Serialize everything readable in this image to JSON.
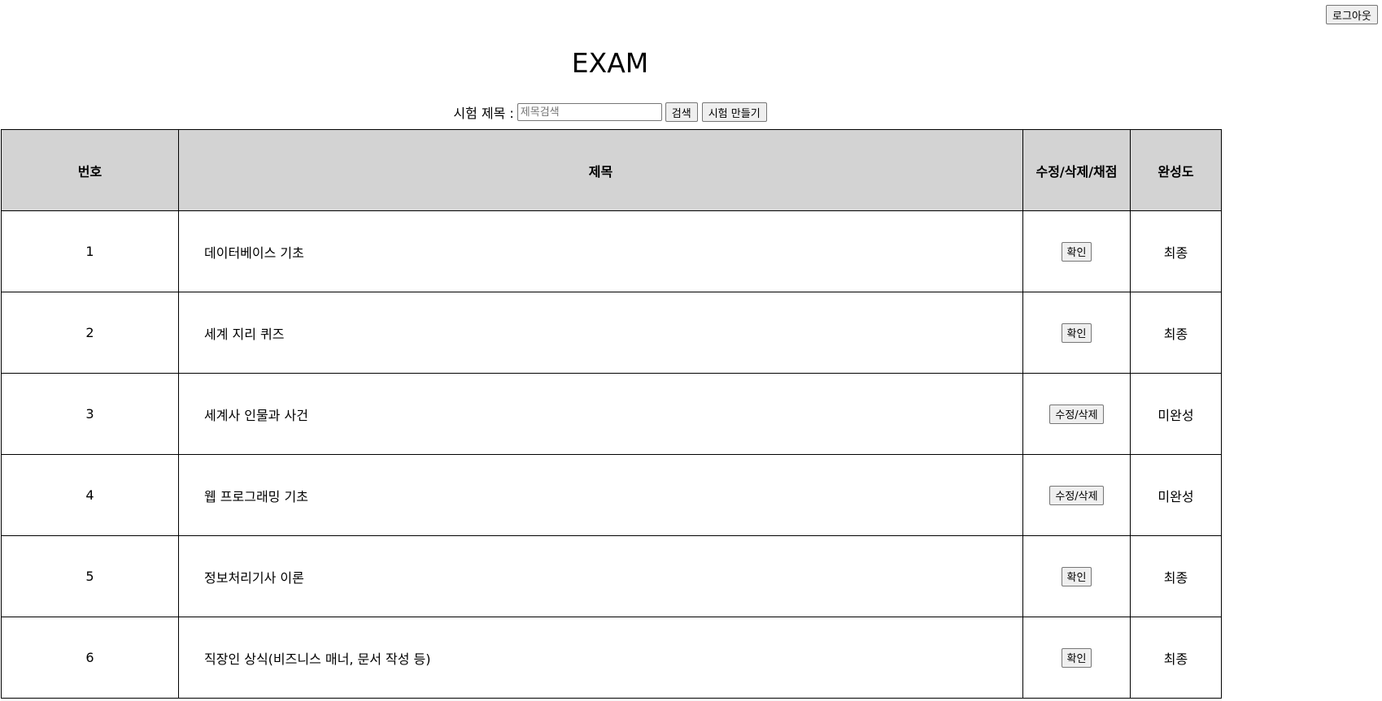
{
  "header": {
    "logout_label": "로그아웃",
    "title": "EXAM"
  },
  "search": {
    "label": "시험 제목 :",
    "placeholder": "제목검색",
    "value": "",
    "search_button": "검색",
    "create_button": "시험 만들기"
  },
  "table": {
    "columns": [
      "번호",
      "제목",
      "수정/삭제/채점",
      "완성도"
    ],
    "rows": [
      {
        "no": "1",
        "title": "데이터베이스 기초",
        "action": "확인",
        "status": "최종"
      },
      {
        "no": "2",
        "title": "세계 지리 퀴즈",
        "action": "확인",
        "status": "최종"
      },
      {
        "no": "3",
        "title": "세계사 인물과 사건",
        "action": "수정/삭제",
        "status": "미완성"
      },
      {
        "no": "4",
        "title": "웹 프로그래밍 기초",
        "action": "수정/삭제",
        "status": "미완성"
      },
      {
        "no": "5",
        "title": "정보처리기사 이론",
        "action": "확인",
        "status": "최종"
      },
      {
        "no": "6",
        "title": "직장인 상식(비즈니스 매너, 문서 작성 등)",
        "action": "확인",
        "status": "최종"
      }
    ]
  }
}
